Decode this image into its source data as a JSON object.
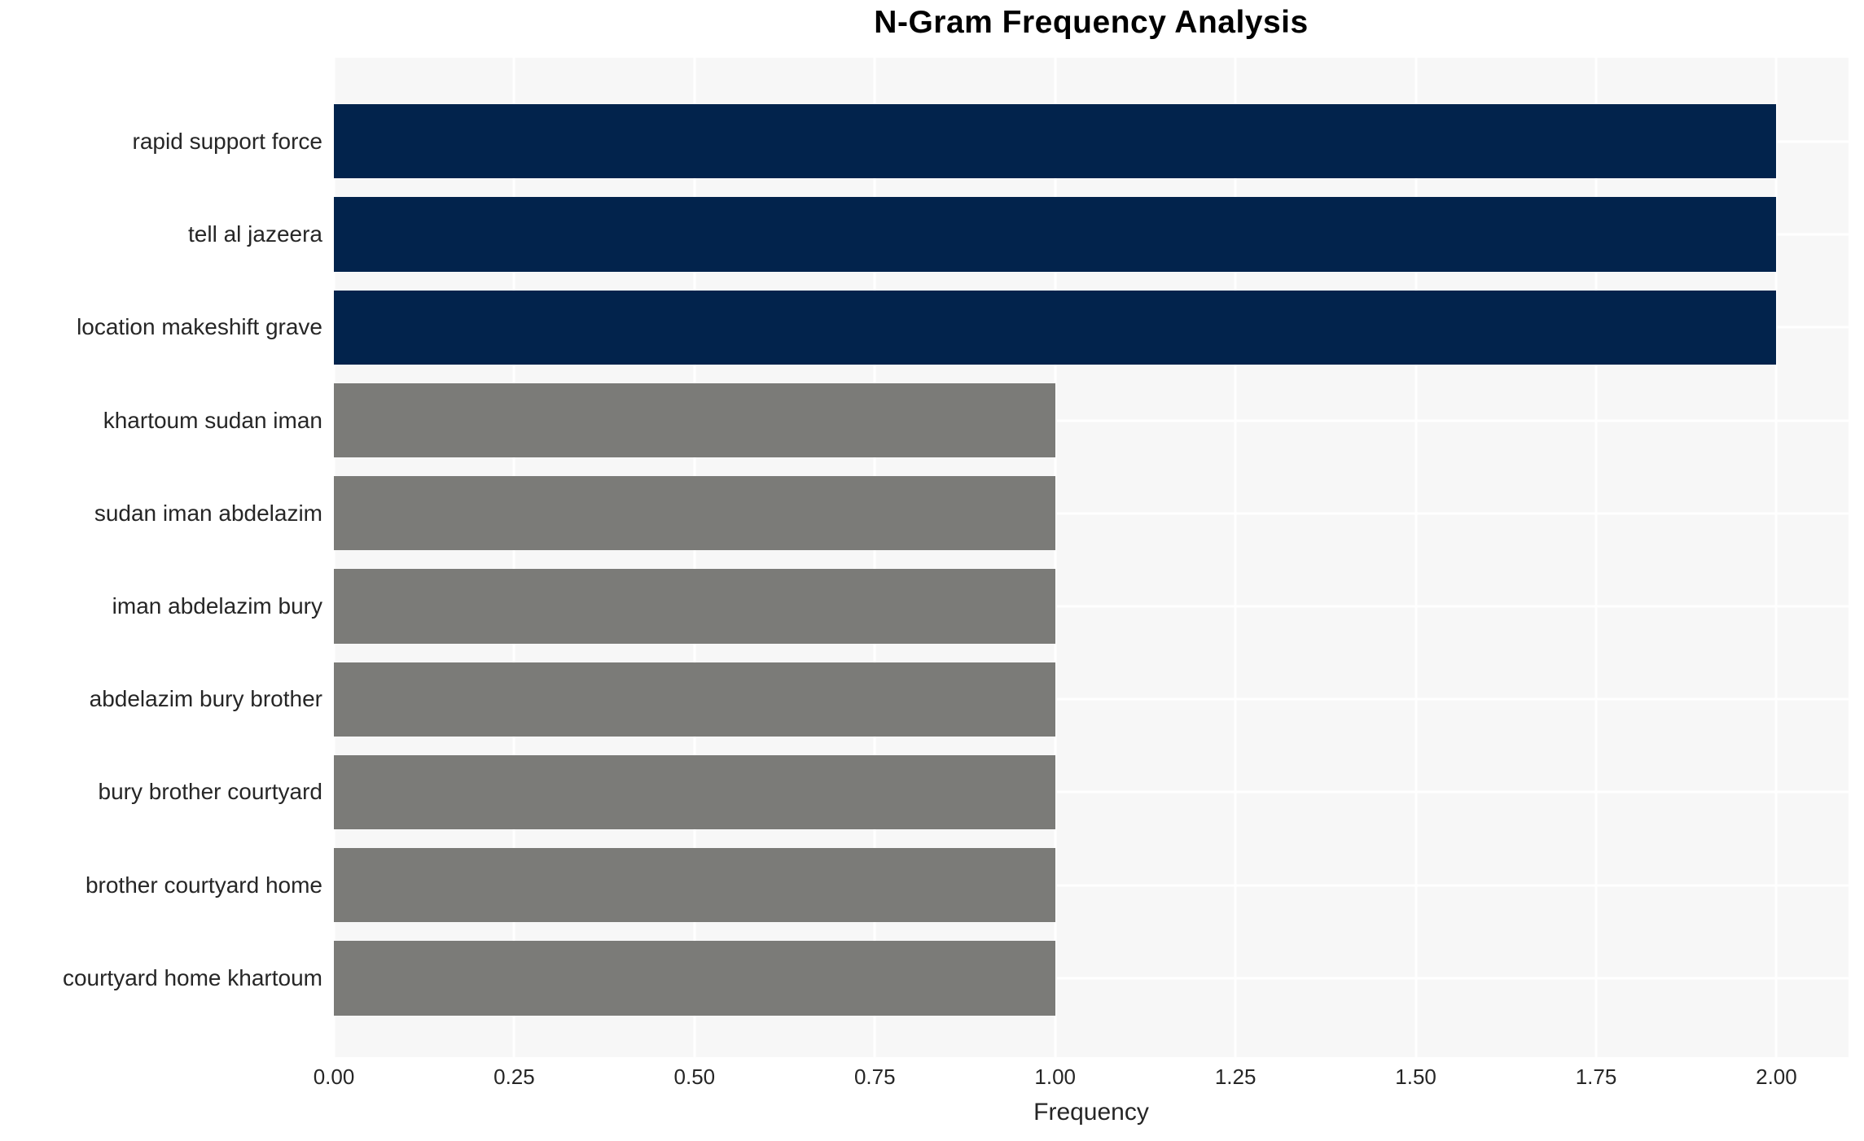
{
  "chart_data": {
    "type": "bar",
    "orientation": "horizontal",
    "title": "N-Gram Frequency Analysis",
    "xlabel": "Frequency",
    "ylabel": "",
    "categories": [
      "rapid support force",
      "tell al jazeera",
      "location makeshift grave",
      "khartoum sudan iman",
      "sudan iman abdelazim",
      "iman abdelazim bury",
      "abdelazim bury brother",
      "bury brother courtyard",
      "brother courtyard home",
      "courtyard home khartoum"
    ],
    "values": [
      2,
      2,
      2,
      1,
      1,
      1,
      1,
      1,
      1,
      1
    ],
    "bar_colors": [
      "#02234C",
      "#02234C",
      "#02234C",
      "#7B7B78",
      "#7B7B78",
      "#7B7B78",
      "#7B7B78",
      "#7B7B78",
      "#7B7B78",
      "#7B7B78"
    ],
    "highlight_color": "#02234C",
    "base_color": "#7B7B78",
    "xticks": [
      0.0,
      0.25,
      0.5,
      0.75,
      1.0,
      1.25,
      1.5,
      1.75,
      2.0
    ],
    "xtick_labels": [
      "0.00",
      "0.25",
      "0.50",
      "0.75",
      "1.00",
      "1.25",
      "1.50",
      "1.75",
      "2.00"
    ],
    "xlim": [
      0,
      2.1
    ],
    "grid": true,
    "grid_color": "#FFFFFF",
    "plot_bg_color": "#F7F7F7",
    "text_color": "#262626",
    "legend": null
  }
}
